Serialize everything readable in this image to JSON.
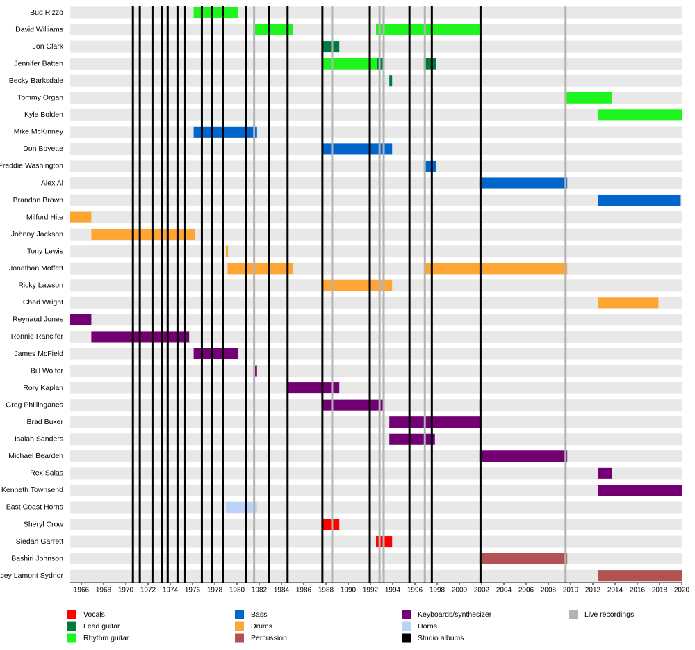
{
  "chart_data": {
    "type": "timeline",
    "categories": [
      "Bud Rizzo",
      "David Williams",
      "Jon Clark",
      "Jennifer Batten",
      "Becky Barksdale",
      "Tommy Organ",
      "Kyle  Bolden",
      "Mike McKinney",
      "Don Boyette",
      "Freddie Washington",
      "Alex Al",
      "Brandon Brown",
      "Milford Hite",
      "Johnny Jackson",
      "Tony Lewis",
      "Jonathan Moffett",
      "Ricky Lawson",
      "Chad Wright",
      "Reynaud Jones",
      "Ronnie Rancifer",
      "James McField",
      "Bill Wolfer",
      "Rory Kaplan",
      "Greg Phillinganes",
      "Brad Buxer",
      "Isaiah Sanders",
      "Michael Bearden",
      "Rex Salas",
      "Kenneth Townsend",
      "East Coast Horns",
      "Sheryl Crow",
      "Siedah Garrett",
      "Bashiri Johnson",
      "Stacey Lamont Sydnor"
    ],
    "xlim": [
      1965,
      2020
    ],
    "xticks": [
      1966,
      1968,
      1970,
      1972,
      1974,
      1976,
      1978,
      1980,
      1982,
      1984,
      1986,
      1988,
      1990,
      1992,
      1994,
      1996,
      1998,
      2000,
      2002,
      2004,
      2006,
      2008,
      2010,
      2012,
      2014,
      2016,
      2018,
      2020
    ],
    "series": [
      {
        "name": "Vocals",
        "color": "#ff0000",
        "bars": [
          {
            "category": "Sheryl Crow",
            "start": 1987.75,
            "end": 1989.2
          },
          {
            "category": "Siedah Garrett",
            "start": 1992.5,
            "end": 1993.95
          }
        ]
      },
      {
        "name": "Lead guitar",
        "color": "#007a3d",
        "bars": [
          {
            "category": "Jon Clark",
            "start": 1987.75,
            "end": 1989.2
          },
          {
            "category": "Jennifer Batten",
            "start": 1992.6,
            "end": 1993.1
          },
          {
            "category": "Jennifer Batten",
            "start": 1996.8,
            "end": 1997.9
          },
          {
            "category": "Becky Barksdale",
            "start": 1993.7,
            "end": 1993.95
          }
        ]
      },
      {
        "name": "Rhythm guitar",
        "color": "#1ef51e",
        "bars": [
          {
            "category": "Bud Rizzo",
            "start": 1976.1,
            "end": 1980.1
          },
          {
            "category": "David Williams",
            "start": 1981.5,
            "end": 1985.0
          },
          {
            "category": "David Williams",
            "start": 1992.5,
            "end": 2001.8
          },
          {
            "category": "Jennifer Batten",
            "start": 1987.75,
            "end": 1992.6
          },
          {
            "category": "Tommy Organ",
            "start": 2009.5,
            "end": 2013.7
          },
          {
            "category": "Kyle  Bolden",
            "start": 2012.5,
            "end": 2020
          }
        ]
      },
      {
        "name": "Bass",
        "color": "#0066cc",
        "bars": [
          {
            "category": "Mike McKinney",
            "start": 1976.1,
            "end": 1981.8
          },
          {
            "category": "Don Boyette",
            "start": 1987.75,
            "end": 1993.95
          },
          {
            "category": "Freddie Washington",
            "start": 1996.8,
            "end": 1997.9
          },
          {
            "category": "Alex Al",
            "start": 2001.8,
            "end": 2009.7
          },
          {
            "category": "Brandon Brown",
            "start": 2012.5,
            "end": 2019.9
          }
        ]
      },
      {
        "name": "Drums",
        "color": "#ffa533",
        "bars": [
          {
            "category": "Milford Hite",
            "start": 1965,
            "end": 1966.9
          },
          {
            "category": "Johnny Jackson",
            "start": 1966.9,
            "end": 1976.2
          },
          {
            "category": "Tony Lewis",
            "start": 1979.0,
            "end": 1979.2
          },
          {
            "category": "Jonathan Moffett",
            "start": 1979.15,
            "end": 1985.0
          },
          {
            "category": "Jonathan Moffett",
            "start": 1996.8,
            "end": 2009.7
          },
          {
            "category": "Ricky Lawson",
            "start": 1987.75,
            "end": 1993.95
          },
          {
            "category": "Chad Wright",
            "start": 2012.5,
            "end": 2017.9
          }
        ]
      },
      {
        "name": "Percussion",
        "color": "#b25252",
        "bars": [
          {
            "category": "Bashiri Johnson",
            "start": 2001.8,
            "end": 2009.7
          },
          {
            "category": "Stacey Lamont Sydnor",
            "start": 2012.5,
            "end": 2020
          }
        ]
      },
      {
        "name": "Keyboards/synthesizer",
        "color": "#730073",
        "bars": [
          {
            "category": "Reynaud Jones",
            "start": 1965,
            "end": 1966.9
          },
          {
            "category": "Ronnie Rancifer",
            "start": 1966.9,
            "end": 1975.7
          },
          {
            "category": "James McField",
            "start": 1976.1,
            "end": 1980.1
          },
          {
            "category": "Bill Wolfer",
            "start": 1981.5,
            "end": 1981.8
          },
          {
            "category": "Rory Kaplan",
            "start": 1984.6,
            "end": 1989.2
          },
          {
            "category": "Greg Phillinganes",
            "start": 1987.75,
            "end": 1993.1
          },
          {
            "category": "Greg Phillinganes",
            "start": 2001.8,
            "end": 2001.95
          },
          {
            "category": "Brad Buxer",
            "start": 1993.7,
            "end": 2001.9
          },
          {
            "category": "Isaiah Sanders",
            "start": 1993.7,
            "end": 1997.8
          },
          {
            "category": "Michael Bearden",
            "start": 2001.8,
            "end": 2009.7
          },
          {
            "category": "Rex Salas",
            "start": 2012.5,
            "end": 2013.7
          },
          {
            "category": "Kenneth Townsend",
            "start": 2012.5,
            "end": 2020
          }
        ]
      },
      {
        "name": "Horns",
        "color": "#bbd2f7",
        "bars": [
          {
            "category": "East Coast Horns",
            "start": 1979.0,
            "end": 1981.8
          }
        ]
      },
      {
        "name": "Studio albums",
        "color": "#000000",
        "events": [
          1970.64,
          1971.26,
          1972.4,
          1973.27,
          1973.77,
          1974.65,
          1975.34,
          1976.84,
          1977.78,
          1978.78,
          1980.79,
          1982.85,
          1984.55,
          1987.68,
          1991.94,
          1995.51,
          1997.52,
          2001.9
        ]
      },
      {
        "name": "Live recordings",
        "color": "#b3b3b3",
        "events": [
          1981.54,
          1988.56,
          1992.82,
          1993.19,
          1996.89,
          2009.55
        ]
      }
    ]
  }
}
